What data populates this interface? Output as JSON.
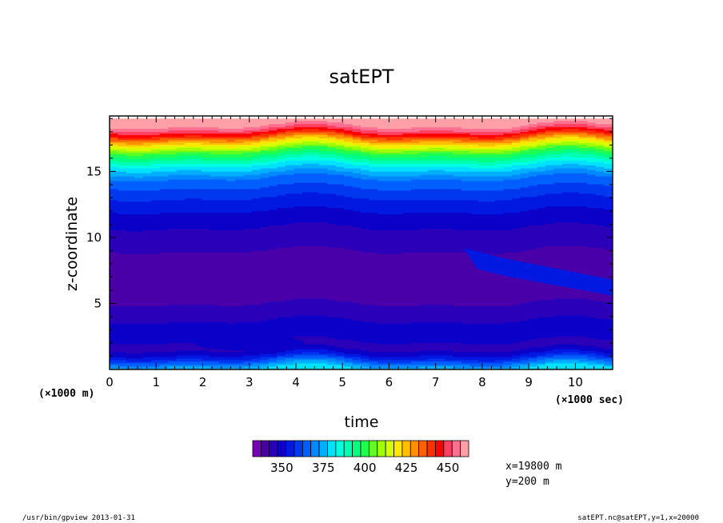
{
  "chart_data": {
    "type": "heatmap",
    "title": "satEPT",
    "xlabel": "time",
    "ylabel": "z-coordinate",
    "x_unit": "(×1000 sec)",
    "y_unit": "(×1000 m)",
    "xlim": [
      0,
      10.8
    ],
    "ylim": [
      0,
      19.2
    ],
    "x_ticks": [
      0,
      1,
      2,
      3,
      4,
      5,
      6,
      7,
      8,
      9,
      10
    ],
    "y_ticks": [
      5,
      10,
      15
    ],
    "z_levels": [
      330,
      335,
      340,
      345,
      350,
      355,
      360,
      365,
      370,
      375,
      380,
      385,
      390,
      395,
      400,
      405,
      410,
      415,
      420,
      425,
      430,
      435,
      440,
      445,
      450,
      455
    ],
    "colorbar_labels": [
      "350",
      "375",
      "400",
      "425",
      "450"
    ],
    "colorbar_label_values": [
      350,
      375,
      400,
      425,
      450
    ],
    "colorbar_colors": [
      "#7a00b8",
      "#4a00a8",
      "#2a00b8",
      "#0a00c8",
      "#0018e0",
      "#0038f0",
      "#0060ff",
      "#0088ff",
      "#00b0ff",
      "#00e0ff",
      "#00ffe0",
      "#00ffb0",
      "#00ff80",
      "#20ff50",
      "#60ff20",
      "#a0ff00",
      "#d8ff00",
      "#ffe800",
      "#ffc000",
      "#ff9000",
      "#ff6000",
      "#ff3000",
      "#ff0000",
      "#ff4060",
      "#ff7090",
      "#ffa0a8"
    ],
    "profile": {
      "z": [
        0,
        0.5,
        1.0,
        1.5,
        2.0,
        2.5,
        3.0,
        3.5,
        4.0,
        5.0,
        7.0,
        9.0,
        10.5,
        12.5,
        13.5,
        14.5,
        15.5,
        16.5,
        17.2,
        17.8,
        18.2,
        18.6,
        19.0,
        19.2
      ],
      "value": [
        378,
        365,
        352,
        345,
        344,
        348,
        345,
        347,
        342,
        340,
        338,
        340,
        344,
        352,
        358,
        365,
        380,
        400,
        420,
        440,
        450,
        458,
        465,
        470
      ]
    }
  },
  "annotations": {
    "x_coord": "x=19800 m",
    "y_coord": "y=200 m",
    "footer_left": "/usr/bin/gpview  2013-01-31",
    "footer_right": "satEPT.nc@satEPT,y=1,x=20000"
  }
}
